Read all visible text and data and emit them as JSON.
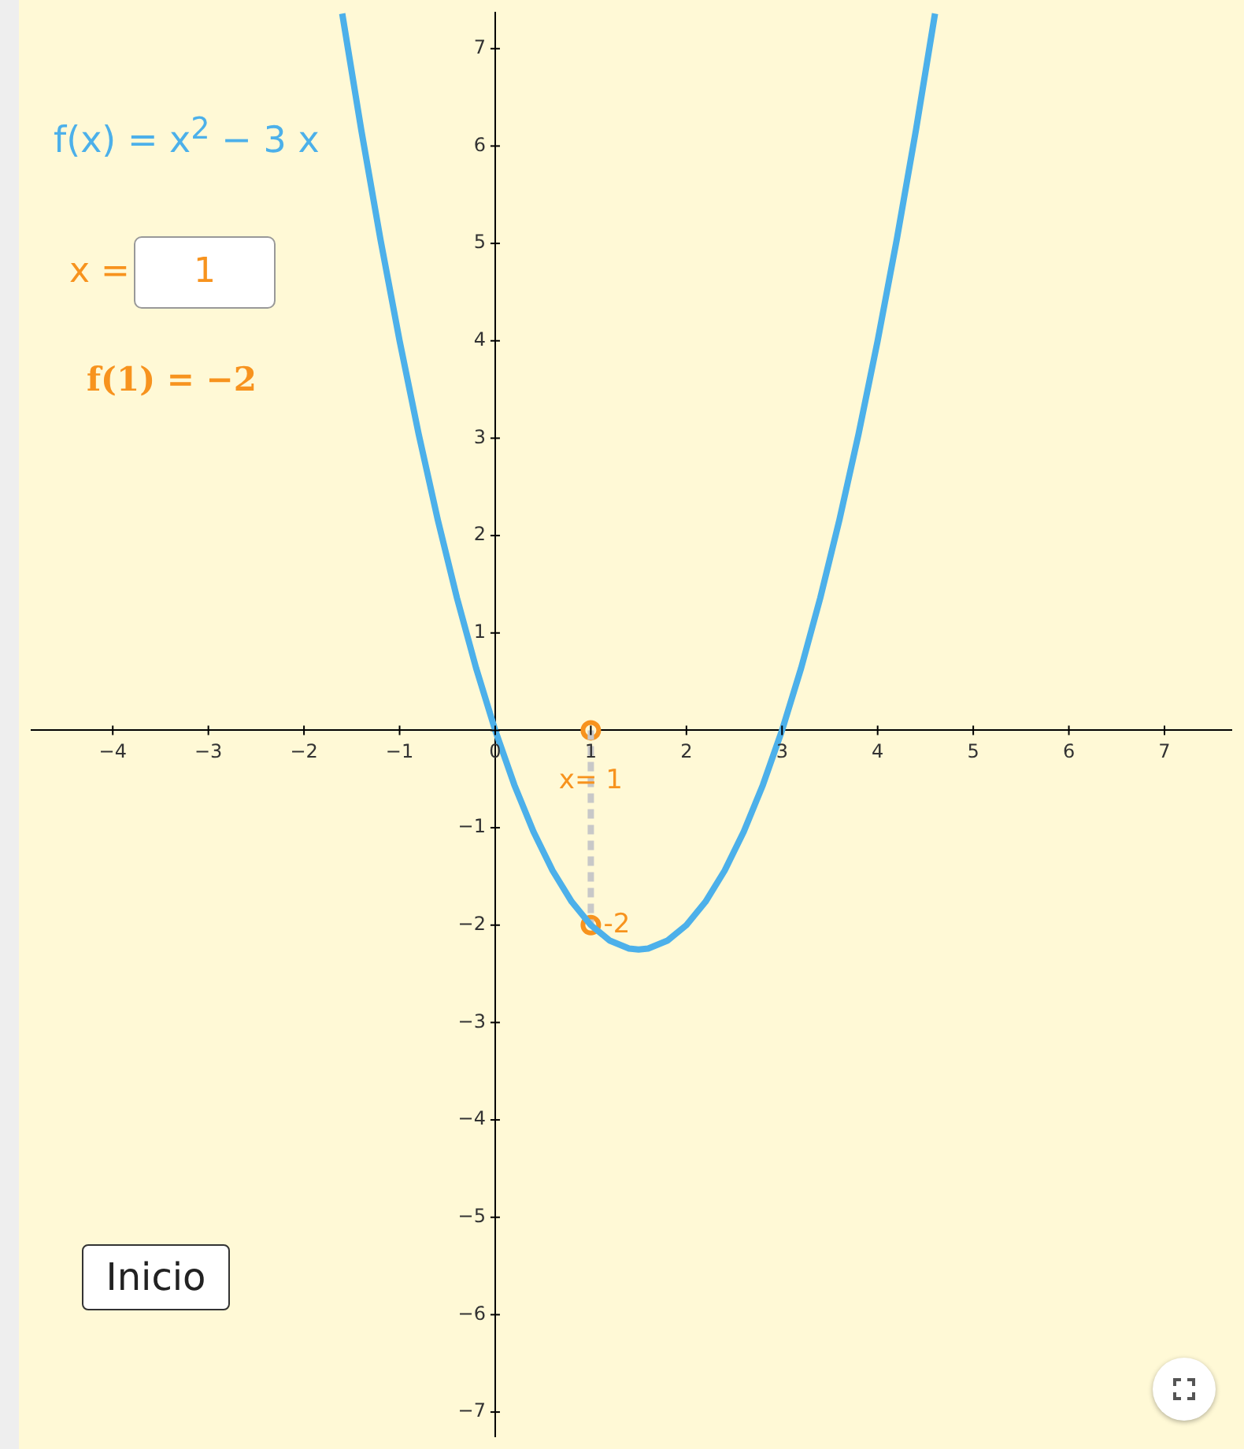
{
  "chart_data": {
    "type": "line",
    "legend": false,
    "annotations": [
      "f(x) = x$^{2}$ − 3 x",
      "x =",
      "1",
      "f(1) = −2",
      "Inicio",
      {
        "text": "x= 1",
        "x": 1,
        "y": 0
      },
      {
        "text": "-2",
        "x": 1,
        "y": -2
      }
    ],
    "xlim": [
      -4.85,
      7.7
    ],
    "ylim": [
      -7.25,
      7.37
    ],
    "xticks": [
      {
        "value": -4,
        "label": "−4"
      },
      {
        "value": -3,
        "label": "−3"
      },
      {
        "value": -2,
        "label": "−2"
      },
      {
        "value": -1,
        "label": "−1"
      },
      0,
      1,
      2,
      3,
      4,
      5,
      6,
      7
    ],
    "yticks": [
      {
        "value": -7,
        "label": "−7"
      },
      {
        "value": -6,
        "label": "−6"
      },
      {
        "value": -5,
        "label": "−5"
      },
      {
        "value": -4,
        "label": "−4"
      },
      {
        "value": -3,
        "label": "−3"
      },
      {
        "value": -2,
        "label": "−2"
      },
      {
        "value": -1,
        "label": "−1"
      },
      {
        "value": 0,
        "label": null
      },
      1,
      2,
      3,
      4,
      5,
      6,
      7
    ],
    "series": [
      {
        "type": "line",
        "color": "#4cb0ea",
        "marker": "none",
        "line_style": "solid",
        "x": [
          -1.6,
          -1.4,
          -1.2,
          -1.0,
          -0.8,
          -0.6,
          -0.4,
          -0.2,
          0,
          0.2,
          0.4,
          0.6,
          0.8,
          1.0,
          1.2,
          1.4,
          1.5,
          1.6,
          1.8,
          2.0,
          2.2,
          2.4,
          2.6,
          2.8,
          3.0,
          3.2,
          3.4,
          3.6,
          3.8,
          4.0,
          4.2,
          4.4,
          4.6
        ],
        "values": [
          7.36,
          6.16,
          5.04,
          4,
          3.04,
          2.16,
          1.36,
          0.64,
          0,
          -0.56,
          -1.04,
          -1.44,
          -1.76,
          -2,
          -2.16,
          -2.24,
          -2.25,
          -2.24,
          -2.16,
          -2,
          -1.76,
          -1.44,
          -1.04,
          -0.56,
          0,
          0.64,
          1.36,
          2.16,
          3.04,
          4,
          5.04,
          6.16,
          7.36
        ]
      },
      {
        "type": "line",
        "color": "#c8c8c8",
        "marker": "none",
        "line_style": "dashed",
        "x": [
          1,
          1
        ],
        "values": [
          0,
          -2
        ]
      },
      {
        "type": "scatter",
        "color": "#f7931e",
        "marker": "circle",
        "x": [
          1,
          1
        ],
        "values": [
          0,
          -2
        ]
      }
    ]
  }
}
